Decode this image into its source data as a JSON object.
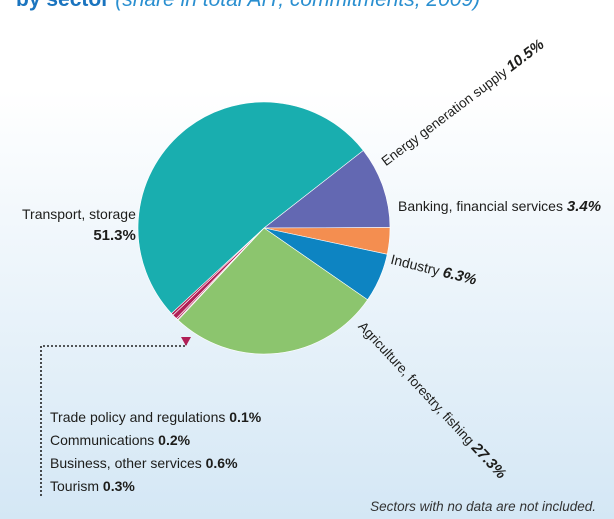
{
  "header": {
    "bold": "by sector",
    "rest": " (share in total AfT, commitments, 2009)"
  },
  "chart_data": {
    "type": "pie",
    "slices": [
      {
        "label": "Transport, storage",
        "value": 51.3,
        "color": "#19aeaf"
      },
      {
        "label": "Energy generation supply",
        "value": 10.5,
        "color": "#6368b2"
      },
      {
        "label": "Banking, financial services",
        "value": 3.4,
        "color": "#f48e50"
      },
      {
        "label": "Industry",
        "value": 6.3,
        "color": "#0d84c2"
      },
      {
        "label": "Agriculture, forestry, fishing",
        "value": 27.3,
        "color": "#8cc56e"
      },
      {
        "label": "Trade policy and regulations",
        "value": 0.1,
        "color": "#b01f56"
      },
      {
        "label": "Communications",
        "value": 0.2,
        "color": "#b01f56"
      },
      {
        "label": "Business, other services",
        "value": 0.6,
        "color": "#b01f56"
      },
      {
        "label": "Tourism",
        "value": 0.3,
        "color": "#b01f56"
      }
    ],
    "labels": {
      "transport": {
        "name": "Transport, storage",
        "pct": "51.3%"
      },
      "energy": {
        "name": "Energy generation supply",
        "pct": "10.5%"
      },
      "banking": {
        "name": "Banking, financial services",
        "pct": "3.4%"
      },
      "industry": {
        "name": "Industry",
        "pct": "6.3%"
      },
      "agri": {
        "name": "Agriculture, forestry, fishing",
        "pct": "27.3%"
      }
    },
    "small_sectors": [
      {
        "name": "Trade policy and regulations",
        "pct": "0.1%"
      },
      {
        "name": "Communications",
        "pct": "0.2%"
      },
      {
        "name": "Business, other services",
        "pct": "0.6%"
      },
      {
        "name": "Tourism",
        "pct": "0.3%"
      }
    ],
    "note": "Sectors with no data are not included."
  }
}
